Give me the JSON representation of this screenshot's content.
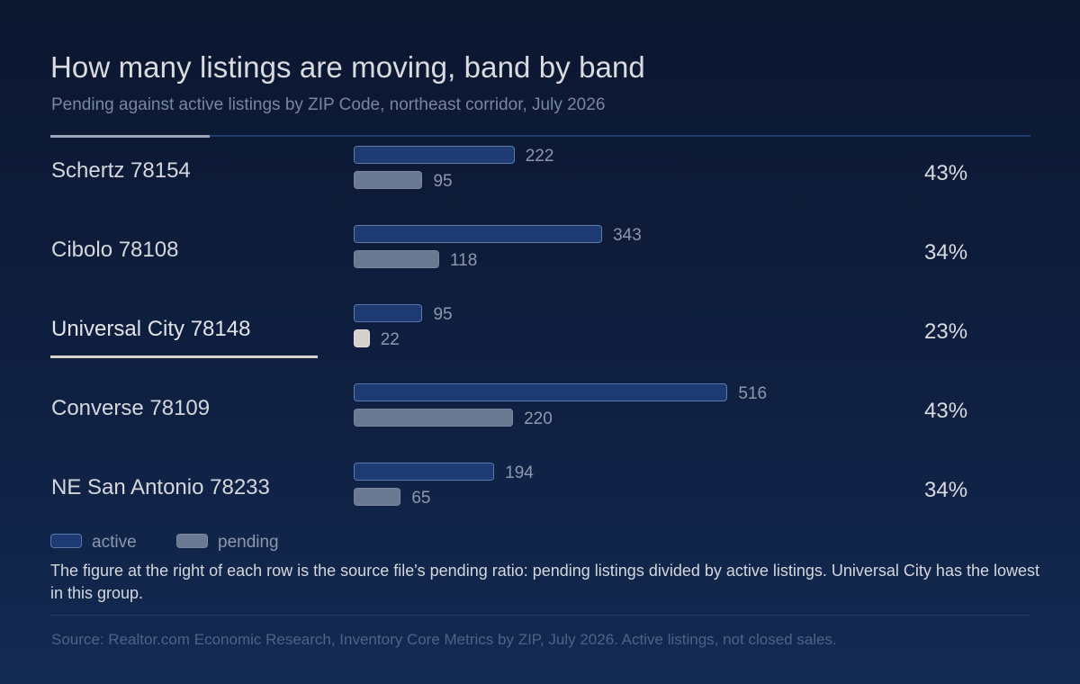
{
  "chart_data": {
    "type": "bar",
    "title": "How many listings are moving, band by band",
    "subtitle": "Pending against active listings by ZIP Code, northeast corridor, July 2026",
    "categories": [
      "Schertz 78154",
      "Cibolo 78108",
      "Universal City 78148",
      "Converse 78109",
      "NE San Antonio 78233"
    ],
    "series": [
      {
        "name": "active",
        "values": [
          222,
          343,
          95,
          516,
          194
        ]
      },
      {
        "name": "pending",
        "values": [
          95,
          118,
          22,
          220,
          65
        ]
      }
    ],
    "ratios": [
      "43%",
      "34%",
      "23%",
      "43%",
      "34%"
    ],
    "highlight": "Universal City 78148",
    "legend": [
      "active",
      "pending"
    ],
    "note": "The figure at the right of each row is the source file's pending ratio: pending listings divided by active listings. Universal City has the lowest in this group.",
    "source": "Source: Realtor.com Economic Research, Inventory Core Metrics by ZIP, July 2026. Active listings, not closed sales.",
    "colors": {
      "active_fill": "#1d3a73",
      "active_border": "#5b78ab",
      "pending_fill": "#6b7891",
      "highlight_fill": "#d6d0ca"
    }
  }
}
